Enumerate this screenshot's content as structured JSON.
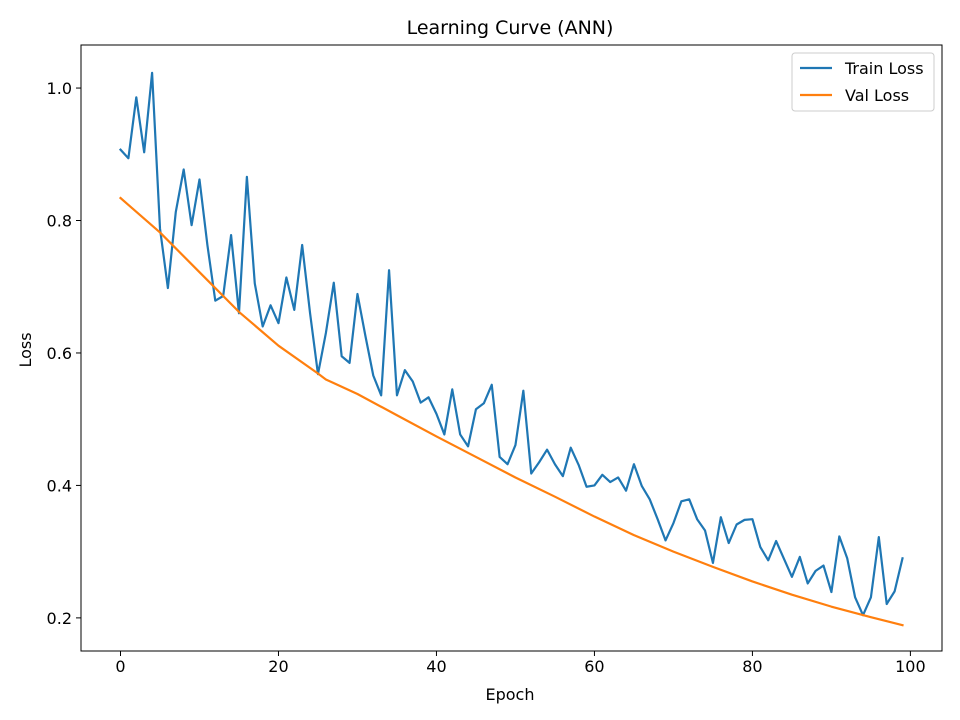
{
  "chart_data": {
    "type": "line",
    "title": "Learning Curve (ANN)",
    "xlabel": "Epoch",
    "ylabel": "Loss",
    "xlim": [
      -5,
      104
    ],
    "ylim": [
      0.15,
      1.065
    ],
    "xticks": [
      0,
      20,
      40,
      60,
      80,
      100
    ],
    "yticks": [
      0.2,
      0.4,
      0.6,
      0.8,
      1.0
    ],
    "xtick_labels": [
      "0",
      "20",
      "40",
      "60",
      "80",
      "100"
    ],
    "ytick_labels": [
      "0.2",
      "0.4",
      "0.6",
      "0.8",
      "1.0"
    ],
    "grid": false,
    "legend_position": "top-right",
    "series": [
      {
        "name": "Train Loss",
        "color": "#1f77b4",
        "x": [
          0,
          1,
          2,
          3,
          4,
          5,
          6,
          7,
          8,
          9,
          10,
          11,
          12,
          13,
          14,
          15,
          16,
          17,
          18,
          19,
          20,
          21,
          22,
          23,
          24,
          25,
          26,
          27,
          28,
          29,
          30,
          31,
          32,
          33,
          34,
          35,
          36,
          37,
          38,
          39,
          40,
          41,
          42,
          43,
          44,
          45,
          46,
          47,
          48,
          49,
          50,
          51,
          52,
          53,
          54,
          55,
          56,
          57,
          58,
          59,
          60,
          61,
          62,
          63,
          64,
          65,
          66,
          67,
          68,
          69,
          70,
          71,
          72,
          73,
          74,
          75,
          76,
          77,
          78,
          79,
          80,
          81,
          82,
          83,
          84,
          85,
          86,
          87,
          88,
          89,
          90,
          91,
          92,
          93,
          94,
          95,
          96,
          97,
          98,
          99
        ],
        "values": [
          0.907,
          0.894,
          0.986,
          0.903,
          1.023,
          0.788,
          0.698,
          0.813,
          0.877,
          0.793,
          0.862,
          0.763,
          0.679,
          0.686,
          0.778,
          0.66,
          0.866,
          0.705,
          0.64,
          0.672,
          0.645,
          0.714,
          0.665,
          0.763,
          0.66,
          0.568,
          0.63,
          0.706,
          0.595,
          0.585,
          0.689,
          0.626,
          0.566,
          0.536,
          0.725,
          0.536,
          0.574,
          0.557,
          0.525,
          0.533,
          0.508,
          0.477,
          0.545,
          0.477,
          0.459,
          0.515,
          0.524,
          0.552,
          0.443,
          0.432,
          0.461,
          0.543,
          0.418,
          0.435,
          0.454,
          0.432,
          0.414,
          0.457,
          0.431,
          0.398,
          0.4,
          0.416,
          0.405,
          0.412,
          0.392,
          0.432,
          0.399,
          0.379,
          0.349,
          0.317,
          0.343,
          0.376,
          0.379,
          0.349,
          0.332,
          0.283,
          0.352,
          0.313,
          0.341,
          0.348,
          0.349,
          0.307,
          0.287,
          0.316,
          0.289,
          0.262,
          0.292,
          0.252,
          0.271,
          0.279,
          0.239,
          0.323,
          0.29,
          0.231,
          0.204,
          0.231,
          0.322,
          0.221,
          0.24,
          0.29
        ]
      },
      {
        "name": "Val Loss",
        "color": "#ff7f0e",
        "x": [
          0,
          5,
          10,
          15,
          20,
          25,
          26,
          30,
          35,
          40,
          45,
          50,
          55,
          60,
          65,
          70,
          75,
          80,
          85,
          90,
          95,
          99
        ],
        "values": [
          0.834,
          0.782,
          0.722,
          0.662,
          0.611,
          0.569,
          0.56,
          0.538,
          0.506,
          0.474,
          0.443,
          0.412,
          0.383,
          0.353,
          0.325,
          0.3,
          0.277,
          0.255,
          0.235,
          0.217,
          0.201,
          0.189
        ]
      }
    ]
  }
}
